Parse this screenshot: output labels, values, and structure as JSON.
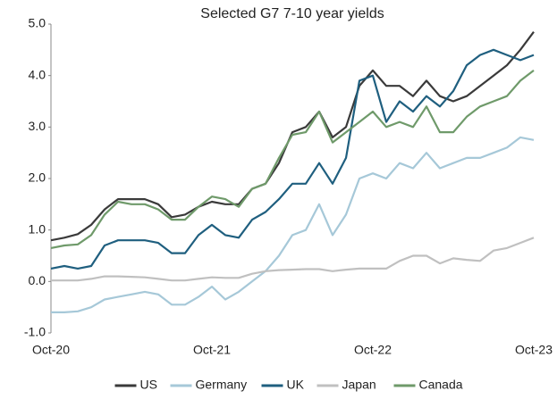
{
  "chart_data": {
    "type": "line",
    "title": "Selected G7  7-10 year yields",
    "categories": [
      "Oct-20",
      null,
      null,
      null,
      null,
      null,
      null,
      null,
      null,
      null,
      null,
      null,
      "Oct-21",
      null,
      null,
      null,
      null,
      null,
      null,
      null,
      null,
      null,
      null,
      null,
      "Oct-22",
      null,
      null,
      null,
      null,
      null,
      null,
      null,
      null,
      null,
      null,
      null,
      "Oct-23"
    ],
    "series": [
      {
        "name": "US",
        "color": "#3a3a3a",
        "values": [
          0.8,
          0.85,
          0.92,
          1.1,
          1.4,
          1.6,
          1.6,
          1.6,
          1.5,
          1.25,
          1.3,
          1.45,
          1.55,
          1.5,
          1.5,
          1.8,
          1.9,
          2.3,
          2.9,
          3.0,
          3.3,
          2.8,
          3.0,
          3.8,
          4.1,
          3.8,
          3.8,
          3.6,
          3.9,
          3.6,
          3.5,
          3.6,
          3.8,
          4.0,
          4.2,
          4.5,
          4.85
        ]
      },
      {
        "name": "Germany",
        "color": "#a6c8d8",
        "values": [
          -0.6,
          -0.6,
          -0.58,
          -0.5,
          -0.35,
          -0.3,
          -0.25,
          -0.2,
          -0.25,
          -0.45,
          -0.45,
          -0.3,
          -0.1,
          -0.35,
          -0.2,
          0.0,
          0.2,
          0.5,
          0.9,
          1.0,
          1.5,
          0.9,
          1.3,
          2.0,
          2.1,
          2.0,
          2.3,
          2.2,
          2.5,
          2.2,
          2.3,
          2.4,
          2.4,
          2.5,
          2.6,
          2.8,
          2.75
        ]
      },
      {
        "name": "UK",
        "color": "#1f5f7f",
        "values": [
          0.25,
          0.3,
          0.25,
          0.3,
          0.7,
          0.8,
          0.8,
          0.8,
          0.75,
          0.55,
          0.55,
          0.9,
          1.1,
          0.9,
          0.85,
          1.2,
          1.35,
          1.6,
          1.9,
          1.9,
          2.3,
          1.9,
          2.4,
          3.9,
          4.0,
          3.1,
          3.5,
          3.3,
          3.6,
          3.4,
          3.7,
          4.2,
          4.4,
          4.5,
          4.4,
          4.3,
          4.4
        ]
      },
      {
        "name": "Japan",
        "color": "#c0c0c0",
        "values": [
          0.02,
          0.02,
          0.02,
          0.05,
          0.1,
          0.1,
          0.09,
          0.08,
          0.05,
          0.02,
          0.02,
          0.05,
          0.08,
          0.07,
          0.07,
          0.15,
          0.2,
          0.22,
          0.23,
          0.24,
          0.24,
          0.2,
          0.23,
          0.25,
          0.25,
          0.25,
          0.4,
          0.5,
          0.5,
          0.35,
          0.45,
          0.42,
          0.4,
          0.6,
          0.65,
          0.75,
          0.85
        ]
      },
      {
        "name": "Canada",
        "color": "#6f9a6a",
        "values": [
          0.65,
          0.7,
          0.72,
          0.9,
          1.3,
          1.55,
          1.5,
          1.5,
          1.4,
          1.2,
          1.2,
          1.45,
          1.65,
          1.6,
          1.45,
          1.8,
          1.9,
          2.4,
          2.85,
          2.9,
          3.3,
          2.7,
          2.9,
          3.1,
          3.3,
          3.0,
          3.1,
          3.0,
          3.4,
          2.9,
          2.9,
          3.2,
          3.4,
          3.5,
          3.6,
          3.9,
          4.1
        ]
      }
    ],
    "ylim": [
      -1,
      5
    ],
    "yticks": [
      {
        "value": -1,
        "label": "-1.0"
      },
      {
        "value": 0,
        "label": "0.0"
      },
      {
        "value": 1,
        "label": "1.0"
      },
      {
        "value": 2,
        "label": "2.0"
      },
      {
        "value": 3,
        "label": "3.0"
      },
      {
        "value": 4,
        "label": "4.0"
      },
      {
        "value": 5,
        "label": "5.0"
      }
    ],
    "legend": "bottom"
  }
}
